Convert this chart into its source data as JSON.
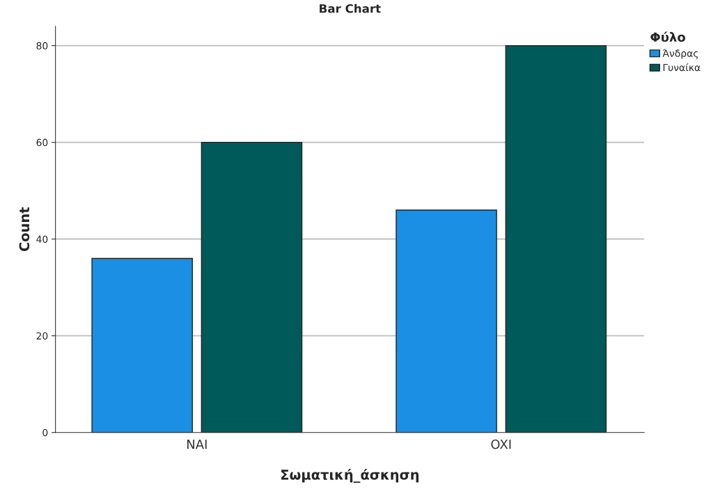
{
  "chart_data": {
    "type": "bar",
    "title": "Bar Chart",
    "xlabel": "Σωματική_άσκηση",
    "ylabel": "Count",
    "legend_title": "Φύλο",
    "categories": [
      "NAI",
      "OXI"
    ],
    "series": [
      {
        "name": "Άνδρας",
        "color": "#1a8fe3",
        "values": [
          36,
          46
        ]
      },
      {
        "name": "Γυναίκα",
        "color": "#005a5a",
        "values": [
          60,
          80
        ]
      }
    ],
    "ylim": [
      0,
      84
    ],
    "yticks": [
      0,
      20,
      40,
      60,
      80
    ],
    "grid": "y",
    "legend": "top right"
  }
}
